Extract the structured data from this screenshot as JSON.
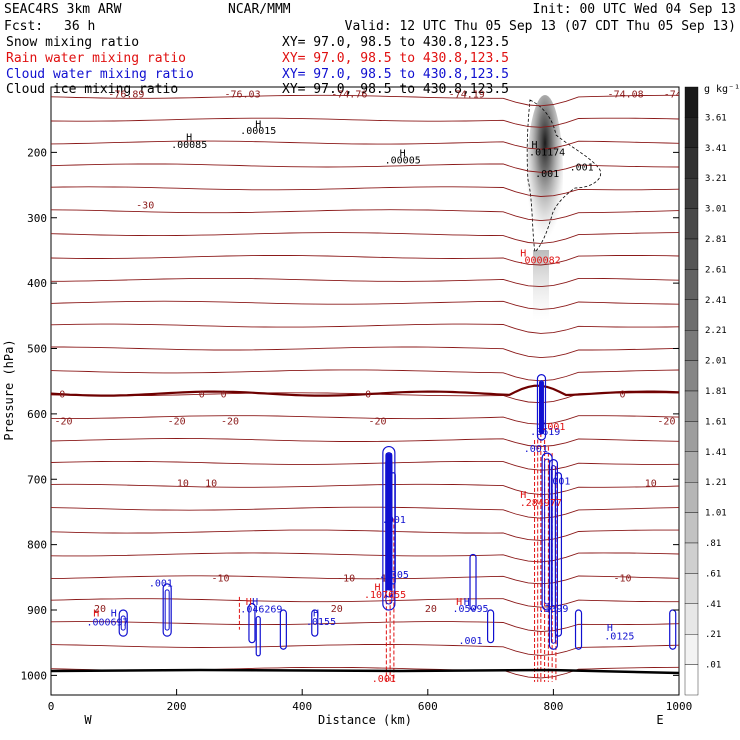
{
  "header": {
    "model": "SEAC4RS  3km ARW",
    "center": "NCAR/MMM",
    "init": "Init: 00 UTC Wed 04 Sep 13",
    "fcst_label": "Fcst:",
    "fcst_value": "36 h",
    "valid": "Valid: 12 UTC Thu 05 Sep 13 (07 CDT Thu 05 Sep 13)"
  },
  "fields": [
    {
      "label": "Snow mixing ratio",
      "xy": "XY=  97.0, 98.5 to 430.8,123.5",
      "color": "#000000"
    },
    {
      "label": "Rain water mixing ratio",
      "xy": "XY=  97.0, 98.5 to 430.8,123.5",
      "color": "#e01010"
    },
    {
      "label": "Cloud water mixing ratio",
      "xy": "XY=  97.0, 98.5 to 430.8,123.5",
      "color": "#1010d0"
    },
    {
      "label": "Cloud ice mixing ratio",
      "xy": "XY=  97.0, 98.5 to 430.8,123.5",
      "color": "#000000"
    }
  ],
  "colors": {
    "temperature": "#8b1a1a",
    "freezing_level": "#6e0000",
    "rain": "#e01010",
    "cloud_water": "#1010d0",
    "snow": "#000000"
  },
  "chart_data": {
    "type": "cross-section",
    "xlabel": "Distance (km)",
    "ylabel": "Pressure (hPa)",
    "xlim": [
      0,
      1000
    ],
    "ylim": [
      1030,
      100
    ],
    "x_ticks": [
      0,
      200,
      400,
      600,
      800,
      1000
    ],
    "y_ticks": [
      200,
      300,
      400,
      500,
      600,
      700,
      800,
      900,
      1000
    ],
    "direction_left": "W",
    "direction_right": "E",
    "colorbar": {
      "unit": "g kg⁻¹",
      "labels": [
        "3.61",
        "3.41",
        "3.21",
        "3.01",
        "2.81",
        "2.61",
        "2.41",
        "2.21",
        "2.01",
        "1.81",
        "1.61",
        "1.41",
        "1.21",
        "1.01",
        ".81",
        ".61",
        ".41",
        ".21",
        ".01"
      ]
    },
    "isotherms": [
      {
        "p": 110,
        "labels": [
          {
            "x": 120,
            "text": "-76.89"
          },
          {
            "x": 305,
            "text": "-76.03"
          },
          {
            "x": 475,
            "text": "-74.76"
          },
          {
            "x": 662,
            "text": "-74.19"
          },
          {
            "x": 915,
            "text": "-74.08"
          },
          {
            "x": 990,
            "text": "-74"
          }
        ]
      },
      {
        "p": 280,
        "labels": [
          {
            "x": 150,
            "text": "-30"
          }
        ]
      },
      {
        "p": 610,
        "labels": [
          {
            "x": 20,
            "text": "-20"
          },
          {
            "x": 200,
            "text": "-20"
          },
          {
            "x": 285,
            "text": "-20"
          },
          {
            "x": 520,
            "text": "-20"
          },
          {
            "x": 980,
            "text": "-20"
          }
        ]
      },
      {
        "p": 850,
        "labels": [
          {
            "x": 270,
            "text": "-10"
          },
          {
            "x": 470,
            "text": "-10"
          },
          {
            "x": 530,
            "text": "-10"
          },
          {
            "x": 910,
            "text": "-10"
          }
        ]
      },
      {
        "p": 569,
        "labels": [
          {
            "x": 18,
            "text": "0"
          },
          {
            "x": 240,
            "text": "0"
          },
          {
            "x": 275,
            "text": "0"
          },
          {
            "x": 505,
            "text": "0"
          },
          {
            "x": 910,
            "text": "0"
          }
        ]
      },
      {
        "p": 705,
        "labels": [
          {
            "x": 210,
            "text": "10"
          },
          {
            "x": 255,
            "text": "10"
          },
          {
            "x": 955,
            "text": "10"
          }
        ]
      },
      {
        "p": 897,
        "labels": [
          {
            "x": 78,
            "text": "20"
          },
          {
            "x": 455,
            "text": "20"
          },
          {
            "x": 605,
            "text": "20"
          }
        ]
      }
    ],
    "snow_max": {
      "x": 780,
      "p_top": 150,
      "p_bottom": 390
    },
    "annotations": [
      {
        "x": 330,
        "p": 162,
        "text": "H",
        "color": "#000000"
      },
      {
        "x": 330,
        "p": 172,
        "text": ".00015",
        "color": "#000000"
      },
      {
        "x": 220,
        "p": 182,
        "text": "H",
        "color": "#000000"
      },
      {
        "x": 220,
        "p": 193,
        "text": ".00085",
        "color": "#000000"
      },
      {
        "x": 560,
        "p": 206,
        "text": "H",
        "color": "#000000"
      },
      {
        "x": 560,
        "p": 217,
        "text": ".00005",
        "color": "#000000"
      },
      {
        "x": 770,
        "p": 193,
        "text": "H",
        "color": "#000000"
      },
      {
        "x": 790,
        "p": 205,
        "text": ".01174",
        "color": "#000000"
      },
      {
        "x": 790,
        "p": 238,
        "text": ".001",
        "color": "#000000"
      },
      {
        "x": 845,
        "p": 228,
        "text": ".001",
        "color": "#000000"
      },
      {
        "x": 752,
        "p": 359,
        "text": "H",
        "color": "#e01010"
      },
      {
        "x": 778,
        "p": 370,
        "text": ".000082",
        "color": "#e01010"
      },
      {
        "x": 784,
        "p": 620,
        "text": "H",
        "color": "#1010d0"
      },
      {
        "x": 787,
        "p": 632,
        "text": ".3619",
        "color": "#1010d0"
      },
      {
        "x": 800,
        "p": 625,
        "text": ".001",
        "color": "#e01010"
      },
      {
        "x": 772,
        "p": 658,
        "text": ".001",
        "color": "#1010d0"
      },
      {
        "x": 752,
        "p": 729,
        "text": "H",
        "color": "#e01010"
      },
      {
        "x": 780,
        "p": 741,
        "text": ".284977",
        "color": "#e01010"
      },
      {
        "x": 808,
        "p": 708,
        "text": ".001",
        "color": "#1010d0"
      },
      {
        "x": 546,
        "p": 767,
        "text": ".001",
        "color": "#1010d0"
      },
      {
        "x": 538,
        "p": 840,
        "text": "H",
        "color": "#1010d0"
      },
      {
        "x": 546,
        "p": 851,
        "text": ".5305",
        "color": "#1010d0"
      },
      {
        "x": 520,
        "p": 870,
        "text": "H",
        "color": "#e01010"
      },
      {
        "x": 532,
        "p": 882,
        "text": ".107655",
        "color": "#e01010"
      },
      {
        "x": 175,
        "p": 864,
        "text": ".001",
        "color": "#1010d0"
      },
      {
        "x": 72,
        "p": 910,
        "text": "H",
        "color": "#e01010"
      },
      {
        "x": 100,
        "p": 910,
        "text": "H",
        "color": "#1010d0"
      },
      {
        "x": 90,
        "p": 924,
        "text": ".000697",
        "color": "#1010d0"
      },
      {
        "x": 315,
        "p": 892,
        "text": "H",
        "color": "#e01010"
      },
      {
        "x": 325,
        "p": 892,
        "text": "H",
        "color": "#1010d0"
      },
      {
        "x": 335,
        "p": 904,
        "text": ".046269",
        "color": "#1010d0"
      },
      {
        "x": 422,
        "p": 910,
        "text": "H",
        "color": "#1010d0"
      },
      {
        "x": 430,
        "p": 923,
        "text": ".0155",
        "color": "#1010d0"
      },
      {
        "x": 650,
        "p": 892,
        "text": "H",
        "color": "#e01010"
      },
      {
        "x": 662,
        "p": 892,
        "text": "H",
        "color": "#1010d0"
      },
      {
        "x": 668,
        "p": 903,
        "text": ".05095",
        "color": "#1010d0"
      },
      {
        "x": 668,
        "p": 952,
        "text": ".001",
        "color": "#1010d0"
      },
      {
        "x": 800,
        "p": 903,
        "text": ".3399",
        "color": "#1010d0"
      },
      {
        "x": 890,
        "p": 932,
        "text": "H",
        "color": "#1010d0"
      },
      {
        "x": 905,
        "p": 945,
        "text": ".0125",
        "color": "#1010d0"
      },
      {
        "x": 530,
        "p": 1010,
        "text": ".001",
        "color": "#e01010"
      }
    ]
  }
}
